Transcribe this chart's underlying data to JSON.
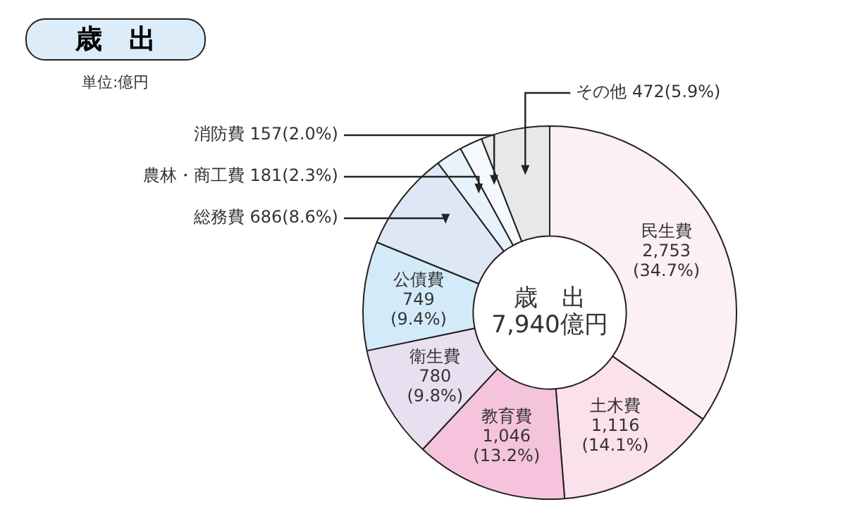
{
  "chart_data": {
    "type": "donut",
    "title": "歳　出",
    "subtitle": "単位:億円",
    "categories": [
      "民生費",
      "土木費",
      "教育費",
      "衛生費",
      "公債費",
      "総務費",
      "農林・商工費",
      "消防費",
      "その他"
    ],
    "values": [
      2753,
      1116,
      1046,
      780,
      749,
      686,
      181,
      157,
      472
    ],
    "colors": [
      "#fdf0f4",
      "#fbe1ec",
      "#f5c3dc",
      "#e8dff0",
      "#d3ebf9",
      "#dde7f5",
      "#e8f2fb",
      "#f5f9fd",
      "#e7e9e8"
    ],
    "value_labels": [
      "2,753(34.7%)",
      "1,116(14.1%)",
      "1,046(13.2%)",
      "780(9.8%)",
      "749(9.4%)",
      "686(8.6%)",
      "181(2.3%)",
      "157(2.0%)",
      "472(5.9%)"
    ],
    "annotations": [
      "歳　出",
      "7,940億円"
    ]
  }
}
